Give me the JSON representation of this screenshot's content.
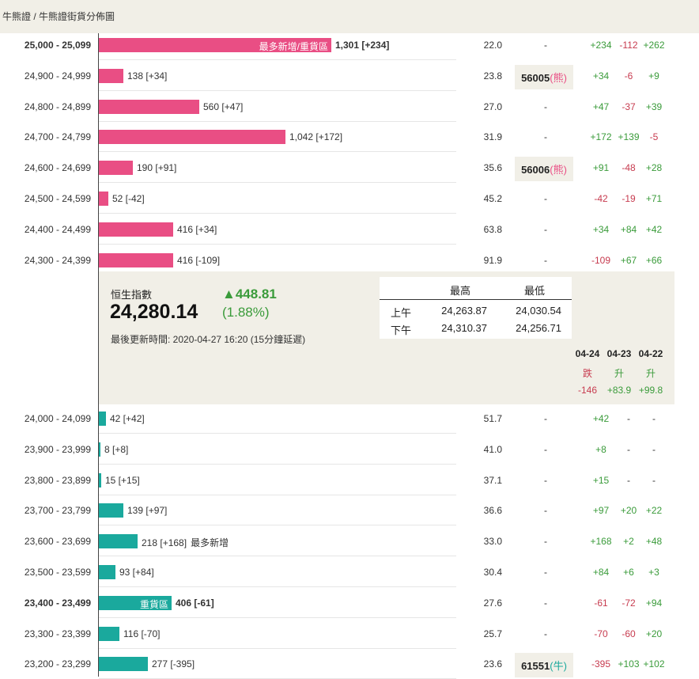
{
  "breadcrumb": "牛熊證 / 牛熊證街貨分佈圖",
  "bear_rows": [
    {
      "range": "25,000 - 25,099",
      "bold": true,
      "tag": "最多新增/重貨區",
      "value_text": "1,301 [+234]",
      "value_bold": true,
      "note": "",
      "width": 294,
      "num": "22.0",
      "code": "",
      "kind": "",
      "chg": [
        "+234",
        "-112",
        "+262"
      ]
    },
    {
      "range": "24,900 - 24,999",
      "bold": false,
      "tag": "",
      "value_text": "138 [+34]",
      "value_bold": false,
      "note": "",
      "width": 31,
      "num": "23.8",
      "code": "56005",
      "kind": "熊",
      "chg": [
        "+34",
        "-6",
        "+9"
      ]
    },
    {
      "range": "24,800 - 24,899",
      "bold": false,
      "tag": "",
      "value_text": "560 [+47]",
      "value_bold": false,
      "note": "",
      "width": 127,
      "num": "27.0",
      "code": "",
      "kind": "",
      "chg": [
        "+47",
        "-37",
        "+39"
      ]
    },
    {
      "range": "24,700 - 24,799",
      "bold": false,
      "tag": "",
      "value_text": "1,042 [+172]",
      "value_bold": false,
      "note": "",
      "width": 236,
      "num": "31.9",
      "code": "",
      "kind": "",
      "chg": [
        "+172",
        "+139",
        "-5"
      ]
    },
    {
      "range": "24,600 - 24,699",
      "bold": false,
      "tag": "",
      "value_text": "190 [+91]",
      "value_bold": false,
      "note": "",
      "width": 43,
      "num": "35.6",
      "code": "56006",
      "kind": "熊",
      "chg": [
        "+91",
        "-48",
        "+28"
      ]
    },
    {
      "range": "24,500 - 24,599",
      "bold": false,
      "tag": "",
      "value_text": "52 [-42]",
      "value_bold": false,
      "note": "",
      "width": 12,
      "num": "45.2",
      "code": "",
      "kind": "",
      "chg": [
        "-42",
        "-19",
        "+71"
      ]
    },
    {
      "range": "24,400 - 24,499",
      "bold": false,
      "tag": "",
      "value_text": "416 [+34]",
      "value_bold": false,
      "note": "",
      "width": 94,
      "num": "63.8",
      "code": "",
      "kind": "",
      "chg": [
        "+34",
        "+84",
        "+42"
      ]
    },
    {
      "range": "24,300 - 24,399",
      "bold": false,
      "tag": "",
      "value_text": "416 [-109]",
      "value_bold": false,
      "note": "",
      "width": 94,
      "num": "91.9",
      "code": "",
      "kind": "",
      "chg": [
        "-109",
        "+67",
        "+66"
      ]
    }
  ],
  "bull_rows": [
    {
      "range": "24,000 - 24,099",
      "bold": false,
      "tag": "",
      "value_text": "42 [+42]",
      "value_bold": false,
      "note": "",
      "width": 9,
      "num": "51.7",
      "code": "",
      "kind": "",
      "chg": [
        "+42",
        "-",
        "-"
      ]
    },
    {
      "range": "23,900 - 23,999",
      "bold": false,
      "tag": "",
      "value_text": "8 [+8]",
      "value_bold": false,
      "note": "",
      "width": 2,
      "num": "41.0",
      "code": "",
      "kind": "",
      "chg": [
        "+8",
        "-",
        "-"
      ]
    },
    {
      "range": "23,800 - 23,899",
      "bold": false,
      "tag": "",
      "value_text": "15 [+15]",
      "value_bold": false,
      "note": "",
      "width": 3,
      "num": "37.1",
      "code": "",
      "kind": "",
      "chg": [
        "+15",
        "-",
        "-"
      ]
    },
    {
      "range": "23,700 - 23,799",
      "bold": false,
      "tag": "",
      "value_text": "139 [+97]",
      "value_bold": false,
      "note": "",
      "width": 31,
      "num": "36.6",
      "code": "",
      "kind": "",
      "chg": [
        "+97",
        "+20",
        "+22"
      ]
    },
    {
      "range": "23,600 - 23,699",
      "bold": false,
      "tag": "",
      "value_text": "218 [+168]",
      "value_bold": false,
      "note": "最多新增",
      "width": 49,
      "num": "33.0",
      "code": "",
      "kind": "",
      "chg": [
        "+168",
        "+2",
        "+48"
      ]
    },
    {
      "range": "23,500 - 23,599",
      "bold": false,
      "tag": "",
      "value_text": "93 [+84]",
      "value_bold": false,
      "note": "",
      "width": 21,
      "num": "30.4",
      "code": "",
      "kind": "",
      "chg": [
        "+84",
        "+6",
        "+3"
      ]
    },
    {
      "range": "23,400 - 23,499",
      "bold": true,
      "tag": "重貨區",
      "value_text": "406 [-61]",
      "value_bold": true,
      "note": "",
      "width": 92,
      "num": "27.6",
      "code": "",
      "kind": "",
      "chg": [
        "-61",
        "-72",
        "+94"
      ]
    },
    {
      "range": "23,300 - 23,399",
      "bold": false,
      "tag": "",
      "value_text": "116 [-70]",
      "value_bold": false,
      "note": "",
      "width": 26,
      "num": "25.7",
      "code": "",
      "kind": "",
      "chg": [
        "-70",
        "-60",
        "+20"
      ]
    },
    {
      "range": "23,200 - 23,299",
      "bold": false,
      "tag": "",
      "value_text": "277 [-395]",
      "value_bold": false,
      "note": "",
      "width": 62,
      "num": "23.6",
      "code": "61551",
      "kind": "牛",
      "chg": [
        "-395",
        "+103",
        "+102"
      ]
    }
  ],
  "dash": "-",
  "index": {
    "name": "恒生指數",
    "value": "24,280.14",
    "change": "▲448.81",
    "change_pct": "(1.88%)",
    "updated": "最後更新時間: 2020-04-27 16:20 (15分鐘延遲)",
    "colors": {
      "up": "#3a9b3a",
      "down": "#c73b4f",
      "bear": "#e94e84",
      "bull": "#1aa99d"
    }
  },
  "high_low": {
    "high_label": "最高",
    "low_label": "最低",
    "am_label": "上午",
    "pm_label": "下午",
    "am_high": "24,263.87",
    "am_low": "24,030.54",
    "pm_high": "24,310.37",
    "pm_low": "24,256.71"
  },
  "days": [
    {
      "date": "04-24",
      "dir": "跌",
      "val": "-146",
      "sign": "neg"
    },
    {
      "date": "04-23",
      "dir": "升",
      "val": "+83.9",
      "sign": "pos"
    },
    {
      "date": "04-22",
      "dir": "升",
      "val": "+99.8",
      "sign": "pos"
    }
  ]
}
